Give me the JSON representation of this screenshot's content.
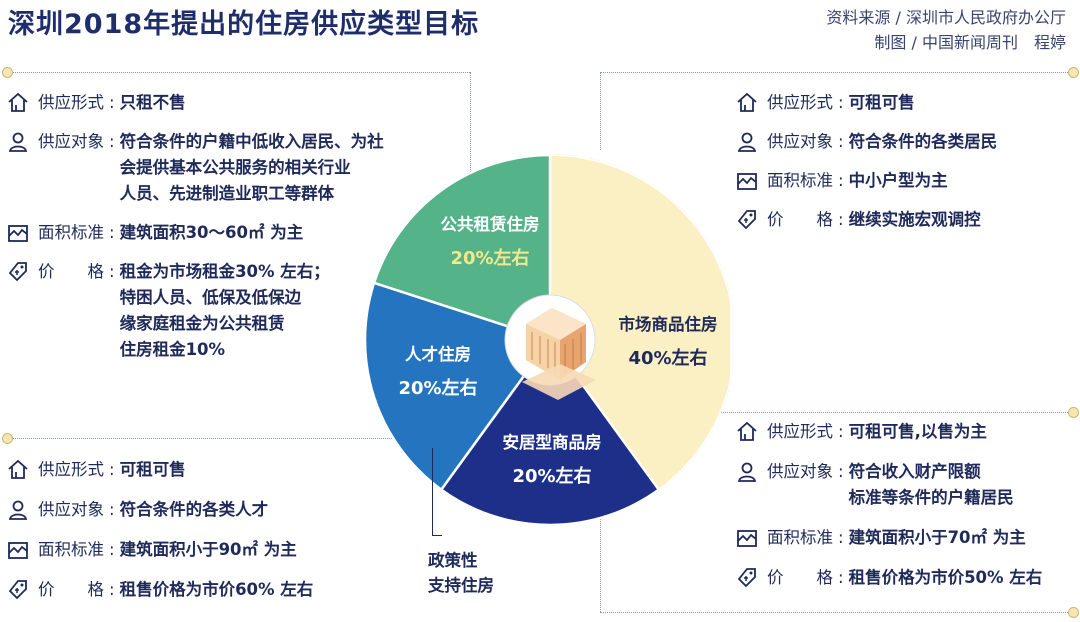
{
  "header": {
    "title": "深圳2018年提出的住房供应类型目标",
    "source": "资料来源 / 深圳市人民政府办公厅",
    "maker": "制图 / 中国新闻周刊　程婷"
  },
  "colors": {
    "public_rental": "#55b38a",
    "talent": "#2474c0",
    "anju": "#1e2f8a",
    "market": "#fbf0c4",
    "market_border": "#e9c968",
    "text": "#1f2a5a"
  },
  "chart_data": {
    "type": "pie",
    "categories": [
      "市场商品住房",
      "安居型商品房",
      "人才住房",
      "公共租赁住房"
    ],
    "values": [
      40,
      20,
      20,
      20
    ],
    "value_labels": [
      "40%左右",
      "20%左右",
      "20%左右",
      "20%左右"
    ],
    "colors": [
      "#fbf0c4",
      "#1e2f8a",
      "#2474c0",
      "#55b38a"
    ],
    "annotation": "政策性\n支持住房"
  },
  "panels": {
    "public_rental": [
      {
        "icon": "house-icon",
        "label": "供应形式",
        "lines": [
          "只租不售"
        ]
      },
      {
        "icon": "person-icon",
        "label": "供应对象",
        "lines": [
          "符合条件的户籍中低收入居民、为社",
          "会提供基本公共服务的相关行业",
          "人员、先进制造业职工等群体"
        ]
      },
      {
        "icon": "area-icon",
        "label": "面积标准",
        "lines": [
          "建筑面积30～60㎡ 为主"
        ]
      },
      {
        "icon": "price-tag-icon",
        "label": "价　　格",
        "lines": [
          "租金为市场租金30% 左右；",
          "特困人员、低保及低保边",
          "缘家庭租金为公共租赁",
          "住房租金10%"
        ]
      }
    ],
    "talent": [
      {
        "icon": "house-icon",
        "label": "供应形式",
        "lines": [
          "可租可售"
        ]
      },
      {
        "icon": "person-icon",
        "label": "供应对象",
        "lines": [
          "符合条件的各类人才"
        ]
      },
      {
        "icon": "area-icon",
        "label": "面积标准",
        "lines": [
          "建筑面积小于90㎡ 为主"
        ]
      },
      {
        "icon": "price-tag-icon",
        "label": "价　　格",
        "lines": [
          "租售价格为市价60% 左右"
        ]
      }
    ],
    "market": [
      {
        "icon": "house-icon",
        "label": "供应形式",
        "lines": [
          "可租可售"
        ]
      },
      {
        "icon": "person-icon",
        "label": "供应对象",
        "lines": [
          "符合条件的各类居民"
        ]
      },
      {
        "icon": "area-icon",
        "label": "面积标准",
        "lines": [
          "中小户型为主"
        ]
      },
      {
        "icon": "price-tag-icon",
        "label": "价　　格",
        "lines": [
          "继续实施宏观调控"
        ]
      }
    ],
    "anju": [
      {
        "icon": "house-icon",
        "label": "供应形式",
        "lines": [
          "可租可售,以售为主"
        ]
      },
      {
        "icon": "person-icon",
        "label": "供应对象",
        "lines": [
          "符合收入财产限额",
          "标准等条件的户籍居民"
        ]
      },
      {
        "icon": "area-icon",
        "label": "面积标准",
        "lines": [
          "建筑面积小于70㎡ 为主"
        ]
      },
      {
        "icon": "price-tag-icon",
        "label": "价　　格",
        "lines": [
          "租售价格为市价50% 左右"
        ]
      }
    ]
  }
}
